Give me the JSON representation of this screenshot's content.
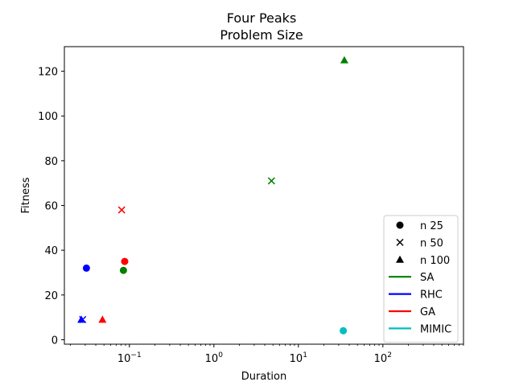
{
  "chart_data": {
    "type": "scatter",
    "title_line1": "Four Peaks",
    "title_line2": "Problem Size",
    "xlabel": "Duration",
    "ylabel": "Fitness",
    "x_scale": "log",
    "xlim": [
      0.017,
      900
    ],
    "ylim": [
      -2,
      131
    ],
    "x_ticks": [
      {
        "value": 0.1,
        "label": "10^-1",
        "base": "10",
        "exp": "−1"
      },
      {
        "value": 1,
        "label": "10^0",
        "base": "10",
        "exp": "0"
      },
      {
        "value": 10,
        "label": "10^1",
        "base": "10",
        "exp": "1"
      },
      {
        "value": 100,
        "label": "10^2",
        "base": "10",
        "exp": "2"
      }
    ],
    "y_ticks": [
      "0",
      "20",
      "40",
      "60",
      "80",
      "100",
      "120"
    ],
    "grid": false,
    "legend_position": "lower right",
    "markers": [
      {
        "label": "n 25",
        "shape": "circle"
      },
      {
        "label": "n 50",
        "shape": "x"
      },
      {
        "label": "n 100",
        "shape": "triangle"
      }
    ],
    "series": [
      {
        "name": "SA",
        "color": "#008000",
        "points": [
          {
            "x": 0.085,
            "y": 31,
            "marker": "circle"
          },
          {
            "x": 4.8,
            "y": 71,
            "marker": "x"
          },
          {
            "x": 35,
            "y": 125,
            "marker": "triangle"
          }
        ]
      },
      {
        "name": "RHC",
        "color": "#0000ff",
        "points": [
          {
            "x": 0.031,
            "y": 32,
            "marker": "circle"
          },
          {
            "x": 0.028,
            "y": 9,
            "marker": "x"
          },
          {
            "x": 0.027,
            "y": 9,
            "marker": "triangle"
          }
        ]
      },
      {
        "name": "GA",
        "color": "#ff0000",
        "points": [
          {
            "x": 0.088,
            "y": 35,
            "marker": "circle"
          },
          {
            "x": 0.081,
            "y": 58,
            "marker": "x"
          },
          {
            "x": 0.048,
            "y": 9,
            "marker": "triangle"
          }
        ]
      },
      {
        "name": "MIMIC",
        "color": "#00bfbf",
        "points": [
          {
            "x": 34,
            "y": 4,
            "marker": "circle"
          }
        ]
      }
    ]
  }
}
